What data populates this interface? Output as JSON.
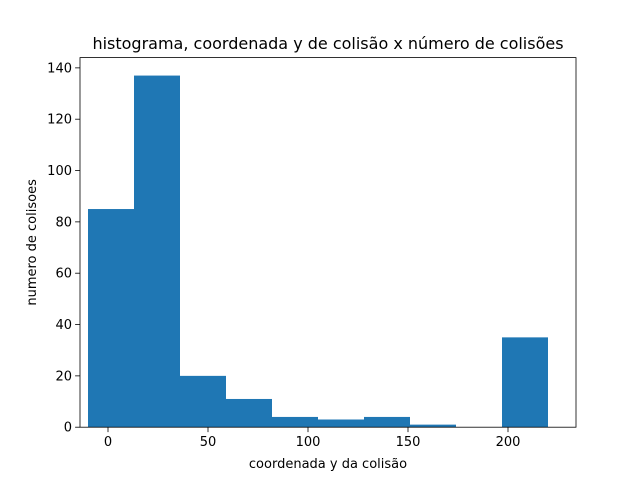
{
  "chart_data": {
    "type": "bar",
    "title": "histograma, coordenada y de colisão x número de colisões",
    "xlabel": "coordenada y da colisão",
    "ylabel": "numero de colisoes",
    "xlim": [
      -14,
      234
    ],
    "ylim": [
      0,
      144
    ],
    "x_ticks": [
      0,
      50,
      100,
      150,
      200
    ],
    "y_ticks": [
      0,
      20,
      40,
      60,
      80,
      100,
      120,
      140
    ],
    "bin_edges": [
      -10,
      13,
      36,
      59,
      82,
      105,
      128,
      151,
      174,
      197,
      220
    ],
    "values": [
      85,
      137,
      20,
      11,
      4,
      3,
      4,
      1,
      0,
      35
    ],
    "bar_color": "#1f77b4",
    "grid": false,
    "legend": false
  }
}
